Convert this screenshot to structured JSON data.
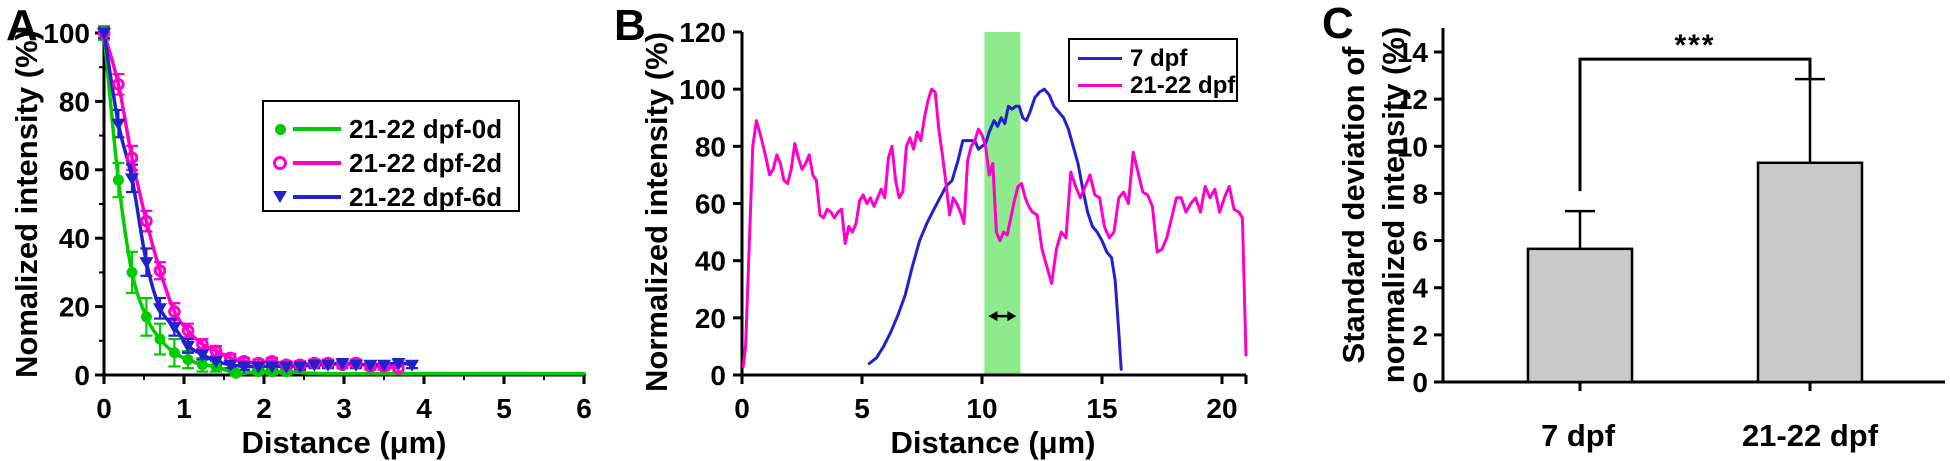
{
  "chart_data": [
    {
      "type": "line",
      "panel_label": "A",
      "xlabel": "Distance (μm)",
      "ylabel": "Nomalized intensity (%)",
      "xlim": [
        0,
        6
      ],
      "ylim": [
        0,
        100
      ],
      "xticks": [
        0,
        1,
        2,
        3,
        4,
        5,
        6
      ],
      "xticks_minor": [
        0.5,
        1.5,
        2.5,
        3.5,
        4.5,
        5.5
      ],
      "yticks": [
        0,
        20,
        40,
        60,
        80,
        100
      ],
      "yticks_minor": [
        10,
        30,
        50,
        70,
        90
      ],
      "grid": false,
      "legend_position": "upper right",
      "series": [
        {
          "name": "21-22 dpf-0d",
          "color": "#00cc00",
          "marker": "filled-circle",
          "x": [
            0,
            0.18,
            0.35,
            0.53,
            0.7,
            0.88,
            1.05,
            1.23,
            1.4,
            1.65,
            1.93,
            2.1,
            2.28
          ],
          "y": [
            100,
            57,
            30,
            17,
            10.5,
            6.5,
            4.5,
            3,
            2.5,
            0.5,
            1,
            1,
            1
          ],
          "err": [
            2,
            5,
            6,
            5.5,
            4.5,
            4,
            2.5,
            2,
            1.5,
            1,
            0.8,
            0.8,
            0.8
          ],
          "line_extra": [
            [
              2.7,
              0.4
            ],
            [
              3.5,
              0.4
            ],
            [
              4.5,
              0.4
            ],
            [
              6,
              0.4
            ]
          ]
        },
        {
          "name": "21-22 dpf-2d",
          "color": "#ff00cc",
          "marker": "open-circle",
          "x": [
            0,
            0.18,
            0.35,
            0.53,
            0.7,
            0.88,
            1.05,
            1.23,
            1.4,
            1.58,
            1.75,
            1.93,
            2.1,
            2.28,
            2.45,
            2.63,
            2.8,
            2.98,
            3.15,
            3.33,
            3.5,
            3.68
          ],
          "y": [
            100,
            85,
            63.5,
            45,
            30.5,
            18.5,
            13,
            9,
            7,
            5,
            4,
            3.5,
            4,
            3,
            3,
            3.5,
            3.5,
            3,
            3.5,
            2.5,
            2.5,
            2
          ],
          "err": [
            1.5,
            3,
            3.5,
            3,
            2.5,
            2.5,
            2,
            1.5,
            1.5,
            1.2,
            1,
            1,
            1,
            1,
            1,
            1,
            1,
            1,
            1,
            1,
            1,
            1
          ],
          "line_extra": []
        },
        {
          "name": "21-22 dpf-6d",
          "color": "#2222cc",
          "marker": "filled-triangle-down",
          "x": [
            0,
            0.18,
            0.35,
            0.53,
            0.7,
            0.88,
            1.05,
            1.23,
            1.4,
            1.58,
            1.75,
            1.93,
            2.1,
            2.28,
            2.45,
            2.63,
            2.8,
            2.98,
            3.15,
            3.33,
            3.5,
            3.68,
            3.85
          ],
          "y": [
            100,
            73.5,
            57.5,
            33,
            19.5,
            14,
            8.5,
            6,
            4,
            3,
            2.5,
            2.5,
            2.5,
            2.5,
            2.5,
            3,
            3,
            3.5,
            3,
            3,
            3,
            3.5,
            3
          ],
          "err": [
            1.5,
            4,
            4,
            4,
            3,
            2.5,
            2,
            1.5,
            1.2,
            1,
            1,
            1,
            1,
            1,
            1,
            1,
            1,
            1,
            1,
            1,
            1,
            1,
            1
          ],
          "line_extra": []
        }
      ]
    },
    {
      "type": "line",
      "panel_label": "B",
      "xlabel": "Distance (μm)",
      "ylabel": "Normalized intensity (%)",
      "xlim": [
        0,
        21
      ],
      "ylim": [
        0,
        120
      ],
      "xticks": [
        0,
        5,
        10,
        15,
        20
      ],
      "yticks": [
        0,
        20,
        40,
        60,
        80,
        100,
        120
      ],
      "grid": false,
      "legend_position": "upper right",
      "highlight_band": {
        "x0": 10.1,
        "x1": 11.6,
        "color": "#8dea8d"
      },
      "arrow": {
        "x0": 10.1,
        "x1": 11.6,
        "y": 20.6,
        "meaning": "double-headed-arrow"
      },
      "series": [
        {
          "name": "7 dpf",
          "color": "#2222cc",
          "points": [
            [
              5.3,
              4
            ],
            [
              5.6,
              6
            ],
            [
              5.9,
              10
            ],
            [
              6.2,
              15
            ],
            [
              6.5,
              21
            ],
            [
              6.8,
              28
            ],
            [
              7.1,
              38
            ],
            [
              7.4,
              47
            ],
            [
              7.7,
              53
            ],
            [
              8.0,
              58
            ],
            [
              8.25,
              62
            ],
            [
              8.5,
              66
            ],
            [
              8.75,
              68
            ],
            [
              9.0,
              75
            ],
            [
              9.2,
              82
            ],
            [
              9.45,
              82
            ],
            [
              9.7,
              82
            ],
            [
              9.85,
              79
            ],
            [
              10.0,
              80
            ],
            [
              10.15,
              81
            ],
            [
              10.3,
              85
            ],
            [
              10.5,
              89
            ],
            [
              10.65,
              87
            ],
            [
              10.8,
              90
            ],
            [
              10.95,
              88
            ],
            [
              11.1,
              94
            ],
            [
              11.25,
              93
            ],
            [
              11.4,
              94
            ],
            [
              11.55,
              94
            ],
            [
              11.7,
              90
            ],
            [
              11.85,
              89
            ],
            [
              12.0,
              92
            ],
            [
              12.2,
              97
            ],
            [
              12.4,
              99
            ],
            [
              12.6,
              100
            ],
            [
              12.8,
              98
            ],
            [
              13.0,
              94
            ],
            [
              13.2,
              92
            ],
            [
              13.4,
              90
            ],
            [
              13.6,
              86
            ],
            [
              13.8,
              80
            ],
            [
              14.0,
              74
            ],
            [
              14.2,
              65
            ],
            [
              14.4,
              57
            ],
            [
              14.6,
              52
            ],
            [
              14.8,
              50
            ],
            [
              15.0,
              47
            ],
            [
              15.2,
              43
            ],
            [
              15.4,
              41
            ],
            [
              15.55,
              33
            ],
            [
              15.7,
              15
            ],
            [
              15.8,
              2
            ]
          ]
        },
        {
          "name": "21-22 dpf",
          "color": "#ff00cc",
          "points": [
            [
              0.05,
              3
            ],
            [
              0.15,
              10
            ],
            [
              0.3,
              45
            ],
            [
              0.45,
              80
            ],
            [
              0.6,
              89
            ],
            [
              0.8,
              83
            ],
            [
              1.0,
              76
            ],
            [
              1.15,
              70
            ],
            [
              1.3,
              72
            ],
            [
              1.45,
              77
            ],
            [
              1.6,
              74
            ],
            [
              1.75,
              68
            ],
            [
              1.9,
              67
            ],
            [
              2.05,
              72
            ],
            [
              2.2,
              81
            ],
            [
              2.35,
              76
            ],
            [
              2.5,
              72
            ],
            [
              2.65,
              74
            ],
            [
              2.8,
              77
            ],
            [
              2.95,
              70
            ],
            [
              3.1,
              68
            ],
            [
              3.25,
              56
            ],
            [
              3.4,
              55
            ],
            [
              3.55,
              58
            ],
            [
              3.7,
              57
            ],
            [
              3.85,
              55
            ],
            [
              4.0,
              57
            ],
            [
              4.15,
              58
            ],
            [
              4.3,
              46
            ],
            [
              4.45,
              52
            ],
            [
              4.6,
              50
            ],
            [
              4.75,
              53
            ],
            [
              4.9,
              61
            ],
            [
              5.05,
              63
            ],
            [
              5.2,
              60
            ],
            [
              5.35,
              62
            ],
            [
              5.5,
              59
            ],
            [
              5.65,
              62
            ],
            [
              5.8,
              65
            ],
            [
              5.95,
              62
            ],
            [
              6.1,
              76
            ],
            [
              6.25,
              80
            ],
            [
              6.4,
              68
            ],
            [
              6.55,
              62
            ],
            [
              6.7,
              64
            ],
            [
              6.85,
              80
            ],
            [
              7.0,
              83
            ],
            [
              7.15,
              79
            ],
            [
              7.3,
              85
            ],
            [
              7.45,
              82
            ],
            [
              7.6,
              90
            ],
            [
              7.75,
              96
            ],
            [
              7.9,
              100
            ],
            [
              8.05,
              99
            ],
            [
              8.2,
              86
            ],
            [
              8.35,
              77
            ],
            [
              8.5,
              67
            ],
            [
              8.65,
              56
            ],
            [
              8.8,
              62
            ],
            [
              8.95,
              60
            ],
            [
              9.1,
              57
            ],
            [
              9.25,
              53
            ],
            [
              9.4,
              75
            ],
            [
              9.55,
              80
            ],
            [
              9.7,
              82
            ],
            [
              9.85,
              86
            ],
            [
              10.0,
              84
            ],
            [
              10.15,
              80
            ],
            [
              10.3,
              70
            ],
            [
              10.45,
              74
            ],
            [
              10.6,
              50
            ],
            [
              10.75,
              47
            ],
            [
              10.9,
              50
            ],
            [
              11.05,
              49
            ],
            [
              11.2,
              55
            ],
            [
              11.35,
              61
            ],
            [
              11.5,
              66
            ],
            [
              11.65,
              67
            ],
            [
              11.8,
              62
            ],
            [
              11.95,
              59
            ],
            [
              12.1,
              57
            ],
            [
              12.3,
              56
            ],
            [
              12.5,
              44
            ],
            [
              12.7,
              38
            ],
            [
              12.9,
              32
            ],
            [
              13.1,
              44
            ],
            [
              13.3,
              50
            ],
            [
              13.5,
              48
            ],
            [
              13.7,
              71
            ],
            [
              13.9,
              66
            ],
            [
              14.1,
              62
            ],
            [
              14.3,
              66
            ],
            [
              14.5,
              70
            ],
            [
              14.7,
              63
            ],
            [
              14.9,
              62
            ],
            [
              15.1,
              52
            ],
            [
              15.3,
              48
            ],
            [
              15.5,
              50
            ],
            [
              15.7,
              62
            ],
            [
              15.9,
              64
            ],
            [
              16.1,
              60
            ],
            [
              16.3,
              78
            ],
            [
              16.5,
              71
            ],
            [
              16.7,
              64
            ],
            [
              16.9,
              63
            ],
            [
              17.1,
              59
            ],
            [
              17.3,
              43
            ],
            [
              17.5,
              44
            ],
            [
              17.7,
              48
            ],
            [
              17.9,
              55
            ],
            [
              18.1,
              62
            ],
            [
              18.3,
              62
            ],
            [
              18.5,
              57
            ],
            [
              18.7,
              60
            ],
            [
              18.9,
              62
            ],
            [
              19.1,
              57
            ],
            [
              19.3,
              66
            ],
            [
              19.5,
              62
            ],
            [
              19.7,
              65
            ],
            [
              19.9,
              57
            ],
            [
              20.1,
              62
            ],
            [
              20.3,
              66
            ],
            [
              20.5,
              58
            ],
            [
              20.7,
              57
            ],
            [
              20.85,
              55
            ],
            [
              21.0,
              7
            ]
          ]
        }
      ]
    },
    {
      "type": "bar",
      "panel_label": "C",
      "ylabel": "Standard deviation of normalized intensity (%)",
      "ylabel_lines": [
        "Standard deviation of",
        "normalized intensity (%)"
      ],
      "categories": [
        "7 dpf",
        "21-22 dpf"
      ],
      "values": [
        5.65,
        9.3
      ],
      "errors": [
        1.6,
        3.55
      ],
      "bar_color": "#c9c9c9",
      "ylim": [
        0,
        14
      ],
      "yticks": [
        0,
        2,
        4,
        6,
        8,
        10,
        12,
        14
      ],
      "grid": false,
      "significance": {
        "label": "***",
        "bracket_y": 13.7,
        "left_leg_bottom": 8.1,
        "right_leg_bottom": 12.9
      }
    }
  ]
}
